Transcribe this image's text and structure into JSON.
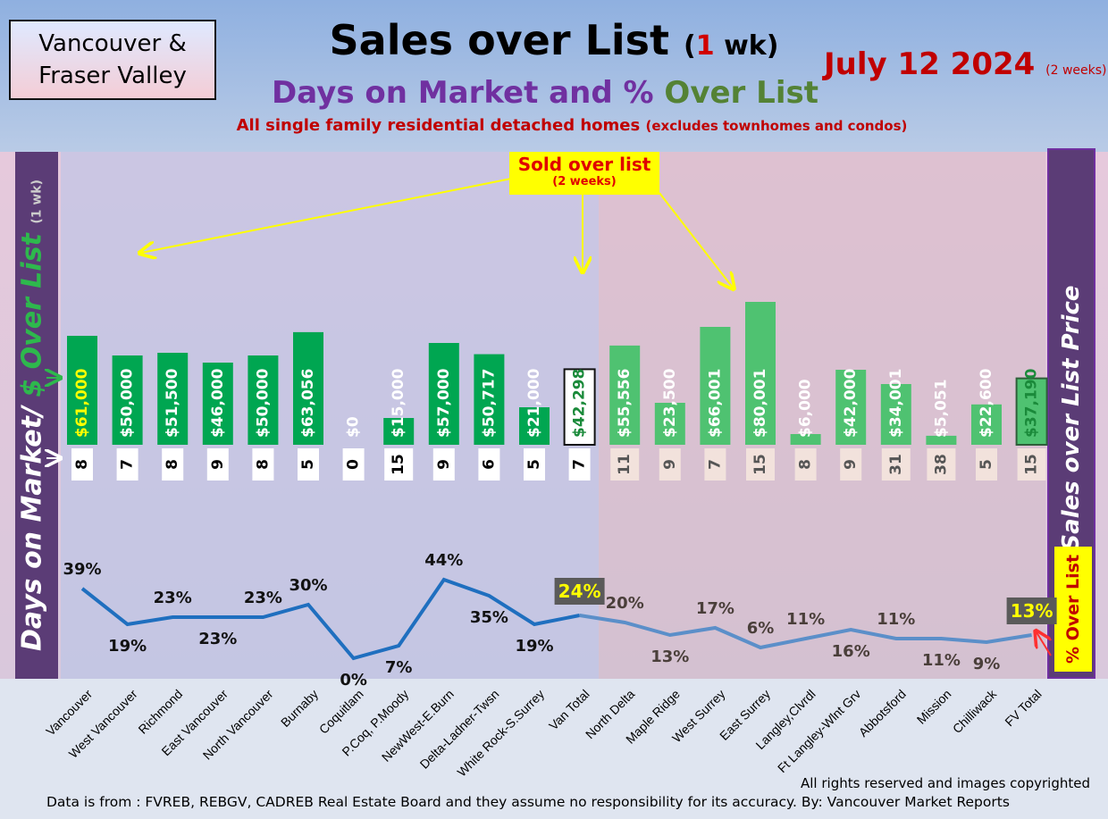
{
  "header": {
    "region_line1": "Vancouver &",
    "region_line2": "Fraser Valley",
    "title_main": "Sales over List",
    "title_paren_open": "(",
    "title_one": "1",
    "title_paren_close": " wk)",
    "date": "July 12  2024",
    "date_note": "(2 weeks)",
    "subtitle_a": "Days on Market and % ",
    "subtitle_b": "Over List",
    "subsub": "All single family residential detached homes",
    "subsub_note": "(excludes townhomes and condos)"
  },
  "side_labels": {
    "left_a": "Days on Market/ ",
    "left_b": "$ Over List",
    "left_note": "(1 wk)",
    "right": "Sales over List Price",
    "over_list": "% Over List"
  },
  "callout": {
    "line1": "Sold over list",
    "line2": "(2 weeks)"
  },
  "footer": {
    "copyright": "All rights reserved and  images copyrighted",
    "source": "Data is from : FVREB, REBGV, CADREB Real Estate Board and they assume no responsibility for its accuracy. By: Vancouver Market Reports"
  },
  "colors": {
    "bar_van": "#00a651",
    "bar_fv": "#4fc271",
    "line_van": "#1f6fbf",
    "line_fv": "#5b8fc9",
    "total_label_bg": "#5a5a5a"
  },
  "chart_data": {
    "type": "bar",
    "categories": [
      "Vancouver",
      "West Vancouver",
      "Richmond",
      "East Vancouver",
      "North Vancouver",
      "Burnaby",
      "Coquitlam",
      "P.Coq, P.Moody",
      "NewWest-E.Burn",
      "Delta-Ladner-Twsn",
      "White Rock-S.Surrey",
      "Van Total",
      "North Delta",
      "Maple Ridge",
      "West Surrey",
      "East Surrey",
      "Langley,Clvrdl",
      "Ft Langley-Wlnt Grv",
      "Abbotsford",
      "Mission",
      "Chilliwack",
      "FV Total"
    ],
    "series": [
      {
        "values": [
          61000,
          50000,
          51500,
          46000,
          50000,
          63056,
          0,
          15000,
          57000,
          50717,
          21000,
          42298,
          55556,
          23500,
          66001,
          80001,
          6000,
          42000,
          34001,
          5051,
          22600,
          37190
        ]
      },
      {
        "values": [
          8,
          7,
          8,
          9,
          8,
          5,
          0,
          15,
          9,
          6,
          5,
          7,
          11,
          9,
          7,
          15,
          8,
          9,
          31,
          38,
          5,
          15
        ]
      },
      {
        "values": [
          39,
          19,
          23,
          23,
          23,
          30,
          0,
          7,
          44,
          35,
          19,
          24,
          20,
          13,
          17,
          6,
          11,
          16,
          11,
          11,
          9,
          13
        ]
      }
    ],
    "bar_labels": [
      "$61,000",
      "$50,000",
      "$51,500",
      "$46,000",
      "$50,000",
      "$63,056",
      "$0",
      "$15,000",
      "$57,000",
      "$50,717",
      "$21,000",
      "$42,298",
      "$55,556",
      "$23,500",
      "$66,001",
      "$80,001",
      "$6,000",
      "$42,000",
      "$34,001",
      "$5,051",
      "$22,600",
      "$37,190"
    ],
    "dom_labels": [
      "8",
      "7",
      "8",
      "9",
      "8",
      "5",
      "0",
      "15",
      "9",
      "6",
      "5",
      "7",
      "11",
      "9",
      "7",
      "15",
      "8",
      "9",
      "31",
      "38",
      "5",
      "15"
    ],
    "pct_labels": [
      "39%",
      "19%",
      "23%",
      "23%",
      "23%",
      "30%",
      "0%",
      "7%",
      "44%",
      "35%",
      "19%",
      "24%",
      "20%",
      "13%",
      "17%",
      "6%",
      "11%",
      "16%",
      "11%",
      "11%",
      "9%",
      "13%"
    ],
    "groups": [
      "vancouver",
      "vancouver",
      "vancouver",
      "vancouver",
      "vancouver",
      "vancouver",
      "vancouver",
      "vancouver",
      "vancouver",
      "vancouver",
      "vancouver",
      "vancouver",
      "fraser-valley",
      "fraser-valley",
      "fraser-valley",
      "fraser-valley",
      "fraser-valley",
      "fraser-valley",
      "fraser-valley",
      "fraser-valley",
      "fraser-valley",
      "fraser-valley"
    ]
  }
}
